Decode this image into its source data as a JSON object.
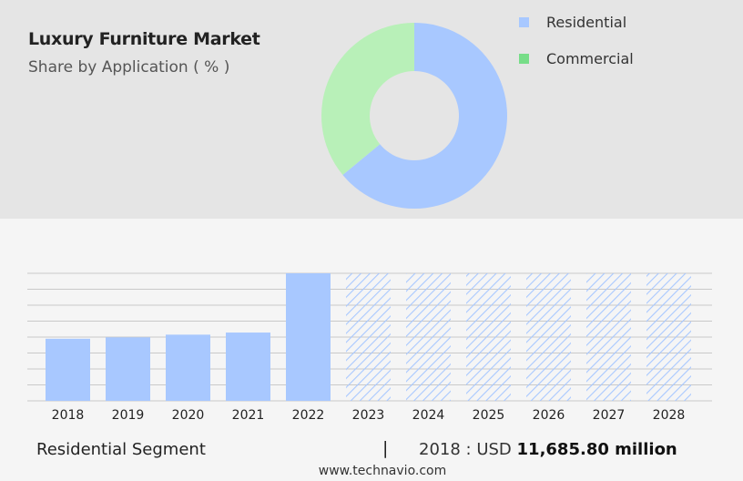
{
  "header": {
    "title": "Luxury Furniture Market",
    "subtitle": "Share by Application ( % )"
  },
  "chart_data": [
    {
      "type": "pie",
      "donut": true,
      "categories": [
        "Residential",
        "Commercial"
      ],
      "values": [
        64,
        36
      ],
      "colors": [
        "#a8c8ff",
        "#b8f0b8"
      ],
      "legend": {
        "placement": "top-right",
        "entries": [
          {
            "label": "Residential",
            "color": "#a8c8ff"
          },
          {
            "label": "Commercial",
            "color": "#77dd88"
          }
        ]
      }
    },
    {
      "type": "bar",
      "categories": [
        "2018",
        "2019",
        "2020",
        "2021",
        "2022",
        "2023",
        "2024",
        "2025",
        "2026",
        "2027",
        "2028"
      ],
      "values": [
        11685.8,
        11950,
        12450,
        12850,
        24000,
        24000,
        24000,
        24000,
        24000,
        24000,
        24000
      ],
      "forecast": [
        false,
        false,
        false,
        false,
        false,
        true,
        true,
        true,
        true,
        true,
        true
      ],
      "ylim": [
        0,
        24000
      ],
      "grid": true,
      "colors": {
        "actual": "#a8c8ff",
        "forecast_hatch": "#a8c8ff"
      }
    }
  ],
  "footer": {
    "segment": "Residential Segment",
    "separator": "|",
    "year_prefix": "2018 : USD",
    "value": "11,685.80 million"
  },
  "source": "www.technavio.com"
}
